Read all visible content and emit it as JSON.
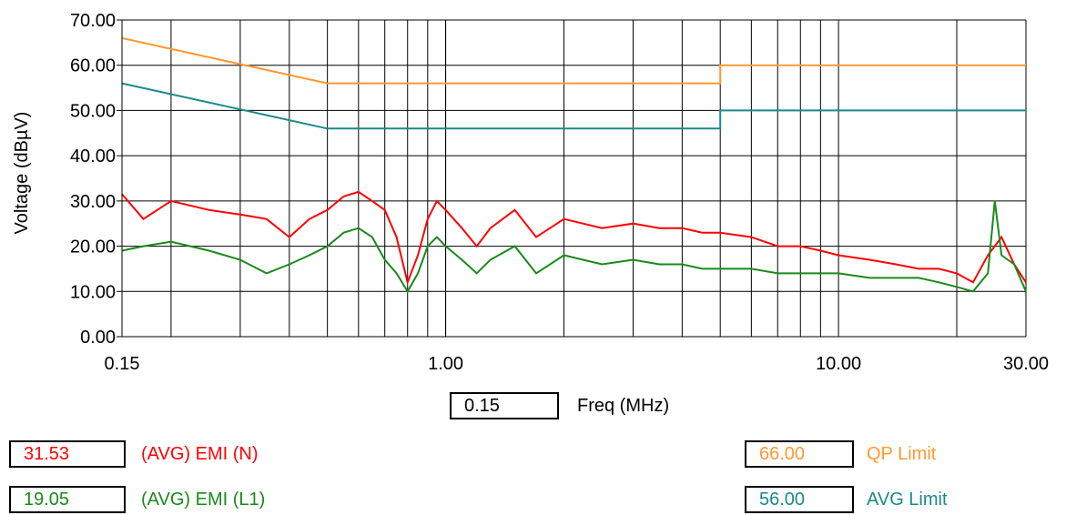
{
  "chart_data": {
    "type": "line",
    "title": "",
    "xlabel": "Freq (MHz)",
    "ylabel": "Voltage (dBµV)",
    "x_scale": "log",
    "xlim": [
      0.15,
      30.0
    ],
    "ylim": [
      0,
      70
    ],
    "yticks": [
      "0.00",
      "10.00",
      "20.00",
      "30.00",
      "40.00",
      "50.00",
      "60.00",
      "70.00"
    ],
    "xticks": [
      {
        "value": 0.15,
        "label": "0.15"
      },
      {
        "value": 1.0,
        "label": "1.00"
      },
      {
        "value": 10.0,
        "label": "10.00"
      },
      {
        "value": 30.0,
        "label": "30.00"
      }
    ],
    "grid": true,
    "series": [
      {
        "name": "QP Limit",
        "color": "#ff9933",
        "x": [
          0.15,
          0.5,
          5.0,
          5.0,
          30.0
        ],
        "y": [
          66.0,
          56.0,
          56.0,
          60.0,
          60.0
        ]
      },
      {
        "name": "AVG Limit",
        "color": "#1a8a8a",
        "x": [
          0.15,
          0.5,
          5.0,
          5.0,
          30.0
        ],
        "y": [
          56.0,
          46.0,
          46.0,
          50.0,
          50.0
        ]
      },
      {
        "name": "(AVG) EMI (N)",
        "color": "#ff0000",
        "x": [
          0.15,
          0.17,
          0.2,
          0.25,
          0.3,
          0.35,
          0.4,
          0.45,
          0.5,
          0.55,
          0.6,
          0.65,
          0.7,
          0.75,
          0.8,
          0.85,
          0.9,
          0.95,
          1.0,
          1.1,
          1.2,
          1.3,
          1.5,
          1.7,
          2.0,
          2.5,
          3.0,
          3.5,
          4.0,
          4.5,
          5.0,
          6.0,
          7.0,
          8.0,
          9.0,
          10.0,
          12.0,
          14.0,
          16.0,
          18.0,
          20.0,
          22.0,
          24.0,
          26.0,
          28.0,
          30.0
        ],
        "y": [
          31.5,
          26,
          30,
          28,
          27,
          26,
          22,
          26,
          28,
          31,
          32,
          30,
          28,
          22,
          12,
          18,
          26,
          30,
          28,
          24,
          20,
          24,
          28,
          22,
          26,
          24,
          25,
          24,
          24,
          23,
          23,
          22,
          20,
          20,
          19,
          18,
          17,
          16,
          15,
          15,
          14,
          12,
          18,
          22,
          16,
          12
        ]
      },
      {
        "name": "(AVG) EMI (L1)",
        "color": "#1a8a1a",
        "x": [
          0.15,
          0.17,
          0.2,
          0.25,
          0.3,
          0.35,
          0.4,
          0.45,
          0.5,
          0.55,
          0.6,
          0.65,
          0.7,
          0.75,
          0.8,
          0.85,
          0.9,
          0.95,
          1.0,
          1.1,
          1.2,
          1.3,
          1.5,
          1.7,
          2.0,
          2.5,
          3.0,
          3.5,
          4.0,
          4.5,
          5.0,
          6.0,
          7.0,
          8.0,
          9.0,
          10.0,
          12.0,
          14.0,
          16.0,
          18.0,
          20.0,
          22.0,
          24.0,
          25.0,
          26.0,
          28.0,
          30.0
        ],
        "y": [
          19,
          20,
          21,
          19,
          17,
          14,
          16,
          18,
          20,
          23,
          24,
          22,
          17,
          14,
          10,
          14,
          20,
          22,
          20,
          17,
          14,
          17,
          20,
          14,
          18,
          16,
          17,
          16,
          16,
          15,
          15,
          15,
          14,
          14,
          14,
          14,
          13,
          13,
          13,
          12,
          11,
          10,
          14,
          30,
          18,
          16,
          10
        ]
      }
    ]
  },
  "freq_input": "0.15",
  "legend": [
    {
      "value": "31.53",
      "label": "(AVG) EMI (N)",
      "color": "#ff0000"
    },
    {
      "value": "19.05",
      "label": "(AVG) EMI (L1)",
      "color": "#1a8a1a"
    },
    {
      "value": "66.00",
      "label": "QP Limit",
      "color": "#ff9933"
    },
    {
      "value": "56.00",
      "label": "AVG Limit",
      "color": "#1a8a8a"
    }
  ]
}
